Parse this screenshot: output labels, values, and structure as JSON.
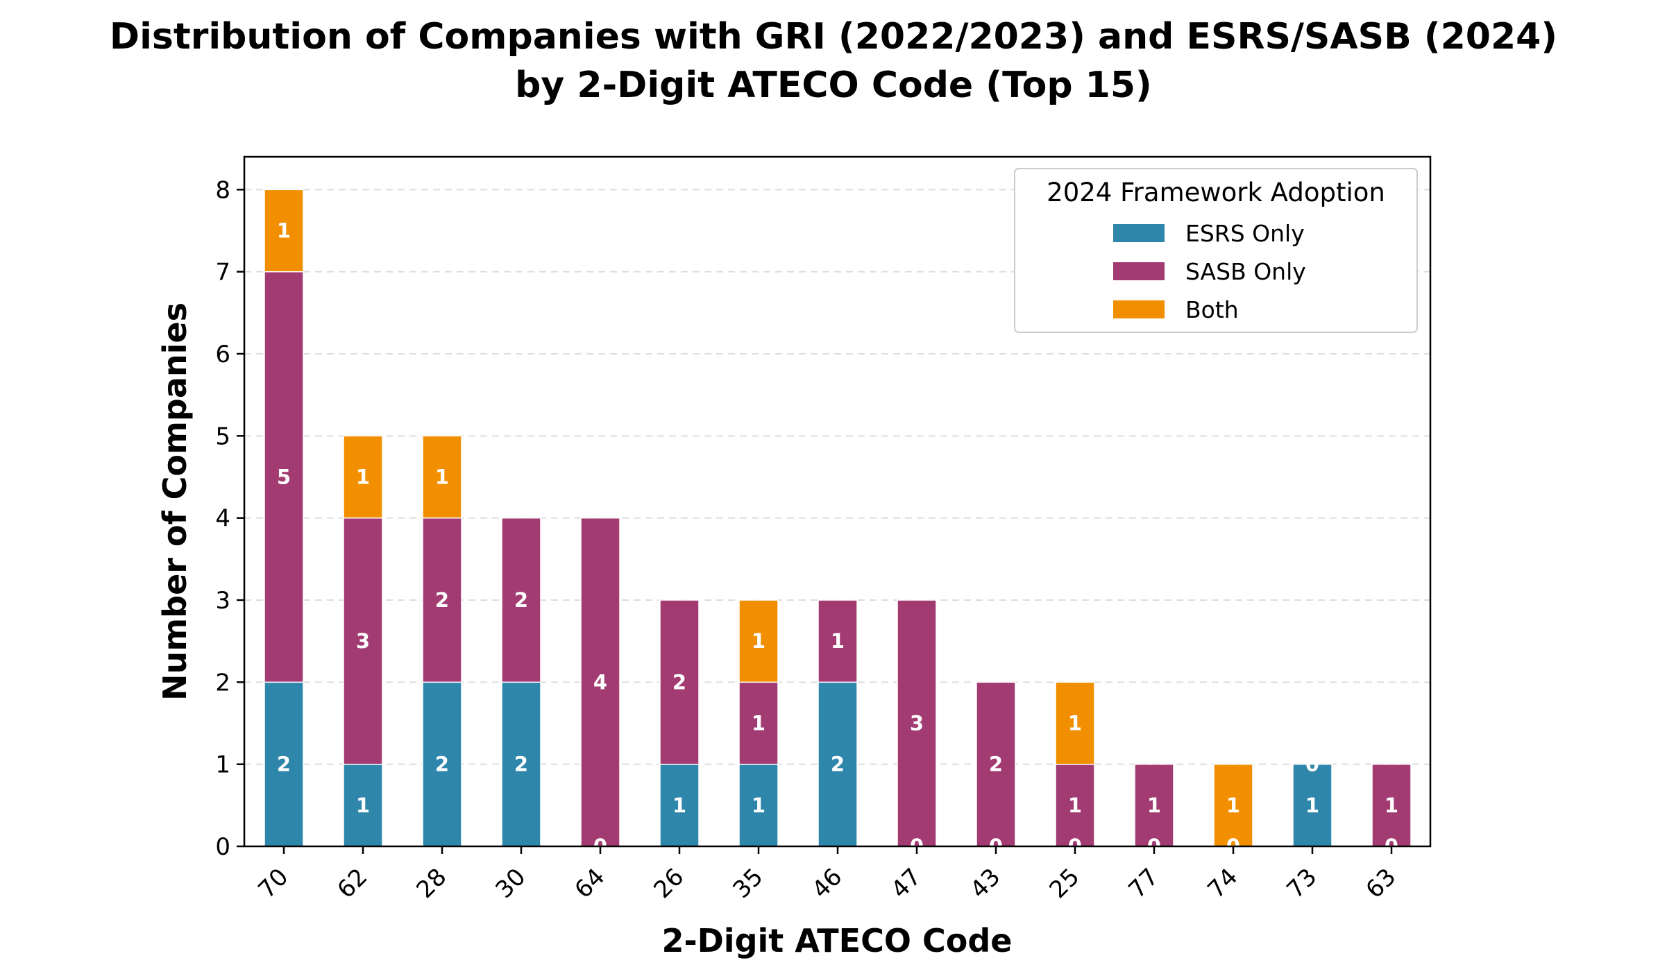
{
  "chart_data": {
    "type": "bar",
    "stacked": true,
    "title": "Distribution of Companies with GRI (2022/2023) and ESRS/SASB (2024)",
    "subtitle": "by 2-Digit ATECO Code (Top 15)",
    "xlabel": "2-Digit ATECO Code",
    "ylabel": "Number of Companies",
    "ylim": [
      0,
      8.4
    ],
    "yticks": [
      0,
      1,
      2,
      3,
      4,
      5,
      6,
      7,
      8
    ],
    "grid": "y-dashed",
    "categories": [
      "70",
      "62",
      "28",
      "30",
      "64",
      "26",
      "35",
      "46",
      "47",
      "43",
      "25",
      "77",
      "74",
      "73",
      "63"
    ],
    "legend": {
      "title": "2024 Framework Adoption",
      "position": "top-right"
    },
    "series": [
      {
        "name": "ESRS Only",
        "color": "#2e86ab",
        "values": [
          2,
          1,
          2,
          2,
          0,
          1,
          1,
          2,
          0,
          0,
          0,
          0,
          0,
          1,
          0
        ]
      },
      {
        "name": "SASB Only",
        "color": "#a23b72",
        "values": [
          5,
          3,
          2,
          2,
          4,
          2,
          1,
          1,
          3,
          2,
          1,
          1,
          0,
          0,
          1
        ]
      },
      {
        "name": "Both",
        "color": "#f18f01",
        "values": [
          1,
          1,
          1,
          0,
          0,
          0,
          1,
          0,
          0,
          0,
          1,
          0,
          1,
          0,
          0
        ]
      }
    ]
  }
}
